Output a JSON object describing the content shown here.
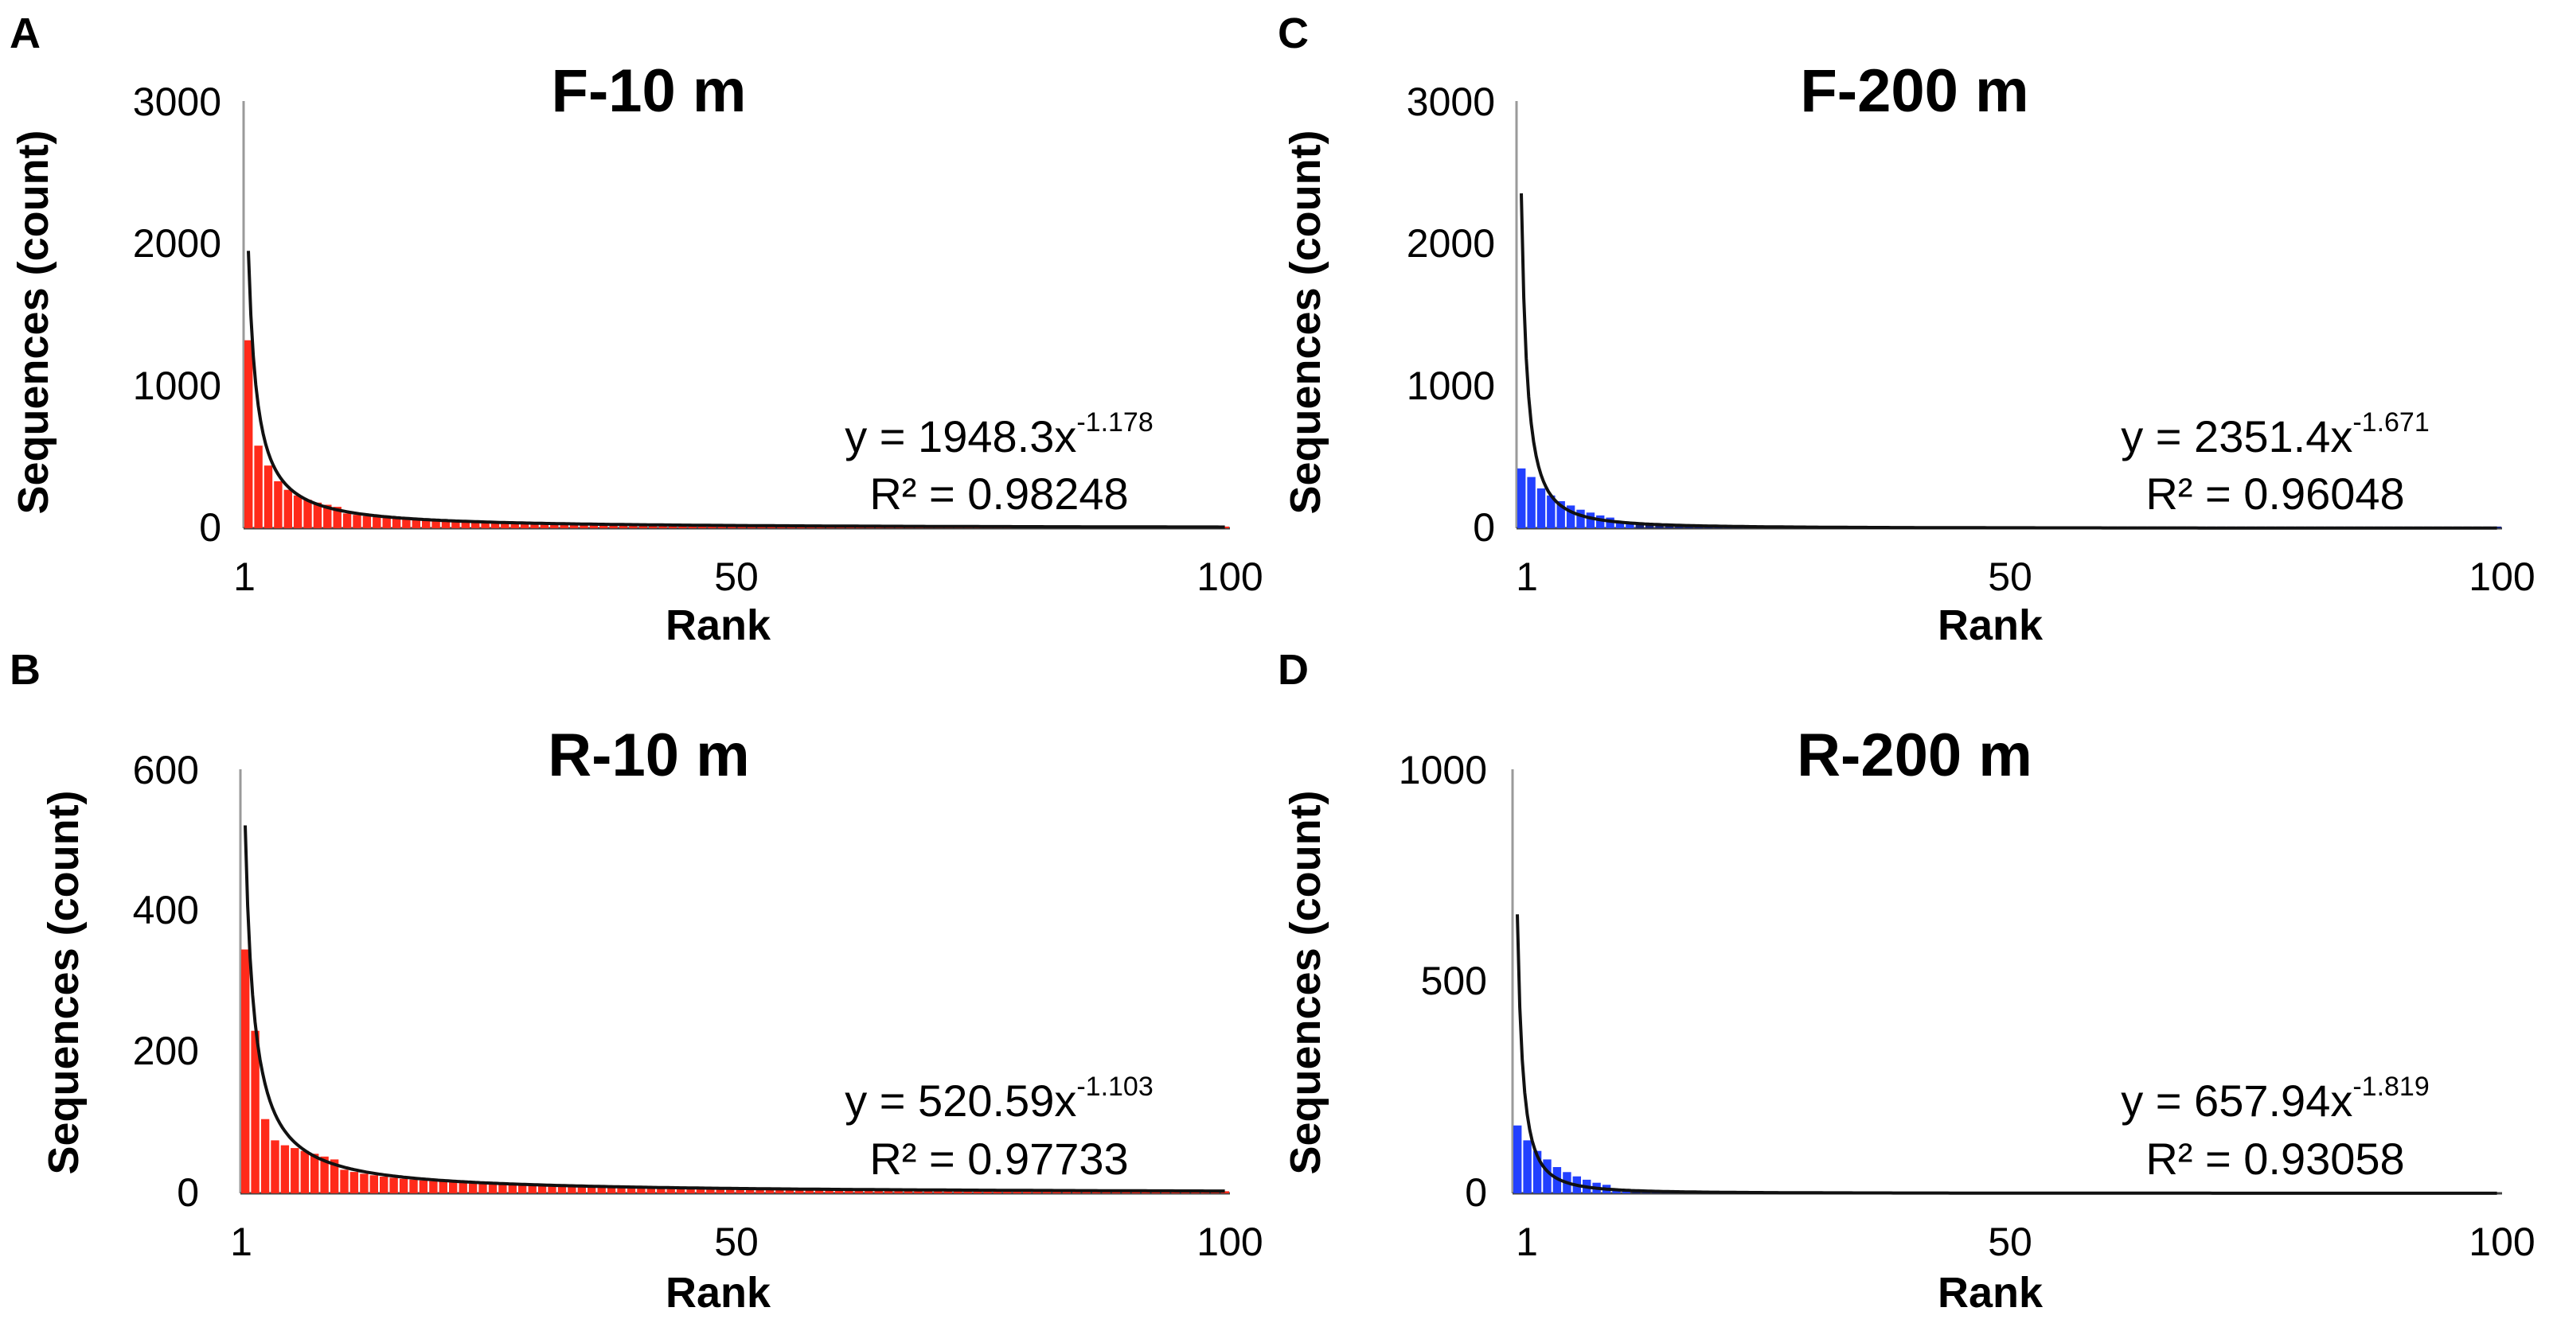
{
  "colors": {
    "red_bar": "#ff2a1a",
    "blue_bar": "#2240ff",
    "blue_tail": "#16237a",
    "fit_line": "#111111",
    "axis": "#9a9a9a"
  },
  "chart_data": [
    {
      "panel": "A",
      "type": "bar",
      "title": "F-10 m",
      "xlabel": "Rank",
      "ylabel": "Sequences (count)",
      "x_ticks": [
        "1",
        "50",
        "100"
      ],
      "y_ticks": [
        "0",
        "1000",
        "2000",
        "3000"
      ],
      "xlim": [
        1,
        100
      ],
      "ylim": [
        0,
        3000
      ],
      "bar_color": "#ff2a1a",
      "bar_count": 100,
      "values_head": [
        1320,
        580,
        440,
        330,
        270,
        230,
        200,
        180,
        165,
        150
      ],
      "fit": {
        "a": 1948.3,
        "b": -1.178
      },
      "equation_prefix": "y = 1948.3x",
      "equation_exponent": "-1.178",
      "r2_text": "R² = 0.98248"
    },
    {
      "panel": "B",
      "type": "bar",
      "title": "R-10 m",
      "xlabel": "Rank",
      "ylabel": "Sequences (count)",
      "x_ticks": [
        "1",
        "50",
        "100"
      ],
      "y_ticks": [
        "0",
        "200",
        "400",
        "600"
      ],
      "xlim": [
        1,
        100
      ],
      "ylim": [
        0,
        600
      ],
      "bar_color": "#ff2a1a",
      "bar_count": 100,
      "values_head": [
        345,
        230,
        105,
        75,
        68,
        64,
        60,
        56,
        52,
        48
      ],
      "fit": {
        "a": 520.59,
        "b": -1.103
      },
      "equation_prefix": "y = 520.59x",
      "equation_exponent": "-1.103",
      "r2_text": "R² = 0.97733"
    },
    {
      "panel": "C",
      "type": "bar",
      "title": "F-200 m",
      "xlabel": "Rank",
      "ylabel": "Sequences (count)",
      "x_ticks": [
        "1",
        "50",
        "100"
      ],
      "y_ticks": [
        "0",
        "1000",
        "2000",
        "3000"
      ],
      "xlim": [
        1,
        100
      ],
      "ylim": [
        0,
        3000
      ],
      "bar_color": "#2240ff",
      "tail_color": "#16237a",
      "bar_count": 100,
      "values_head": [
        420,
        360,
        280,
        230,
        190,
        160,
        130,
        110,
        90,
        75
      ],
      "fit": {
        "a": 2351.4,
        "b": -1.671
      },
      "equation_prefix": "y = 2351.4x",
      "equation_exponent": "-1.671",
      "r2_text": "R² = 0.96048"
    },
    {
      "panel": "D",
      "type": "bar",
      "title": "R-200 m",
      "xlabel": "Rank",
      "ylabel": "Sequences (count)",
      "x_ticks": [
        "1",
        "50",
        "100"
      ],
      "y_ticks": [
        "0",
        "500",
        "1000"
      ],
      "xlim": [
        1,
        100
      ],
      "ylim": [
        0,
        1000
      ],
      "bar_color": "#2240ff",
      "tail_color": "#16237a",
      "bar_count": 36,
      "values_head": [
        160,
        125,
        100,
        80,
        62,
        50,
        40,
        32,
        25,
        20
      ],
      "fit": {
        "a": 657.94,
        "b": -1.819
      },
      "equation_prefix": "y = 657.94x",
      "equation_exponent": "-1.819",
      "r2_text": "R² = 0.93058"
    }
  ]
}
